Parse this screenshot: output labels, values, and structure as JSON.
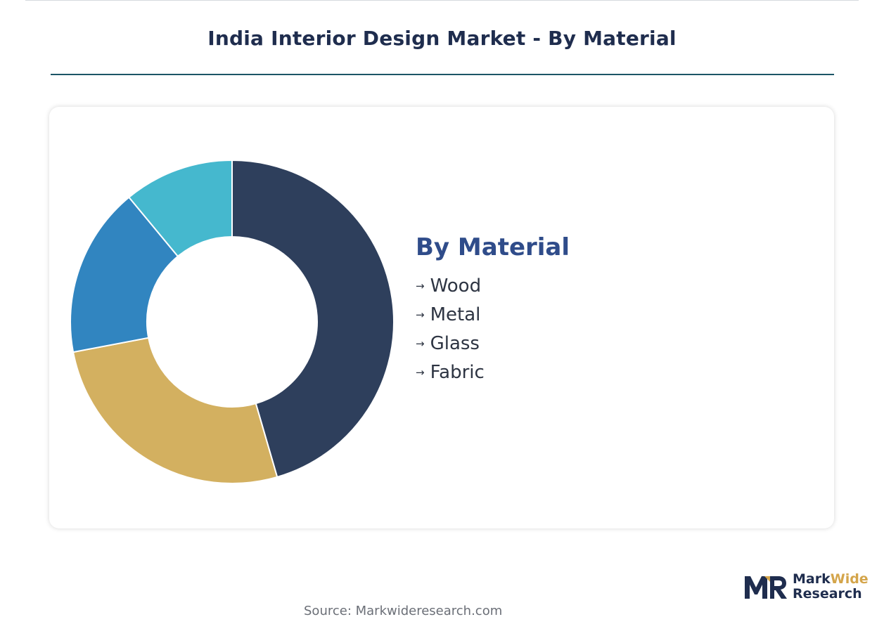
{
  "page": {
    "title": "India Interior Design Market - By Material",
    "source": "Source: Markwideresearch.com"
  },
  "logo": {
    "word1": "Mark",
    "word2": "Wide",
    "word3": "Research",
    "colors": {
      "dark": "#1f2d4e",
      "accent": "#d4a54b"
    }
  },
  "legend": {
    "title": "By Material",
    "arrow": "→",
    "items": [
      "Wood",
      "Metal",
      "Glass",
      "Fabric"
    ]
  },
  "chart_data": {
    "type": "pie",
    "variant": "donut",
    "categories": [
      "Wood",
      "Metal",
      "Glass",
      "Fabric"
    ],
    "values": [
      45.5,
      26.5,
      17,
      11
    ],
    "unit": "%",
    "colors": [
      "#2e3f5c",
      "#d3b060",
      "#3185c0",
      "#45b8ce"
    ],
    "start_angle_deg": 0,
    "direction": "clockwise",
    "title": "",
    "legend_placement": "right"
  }
}
